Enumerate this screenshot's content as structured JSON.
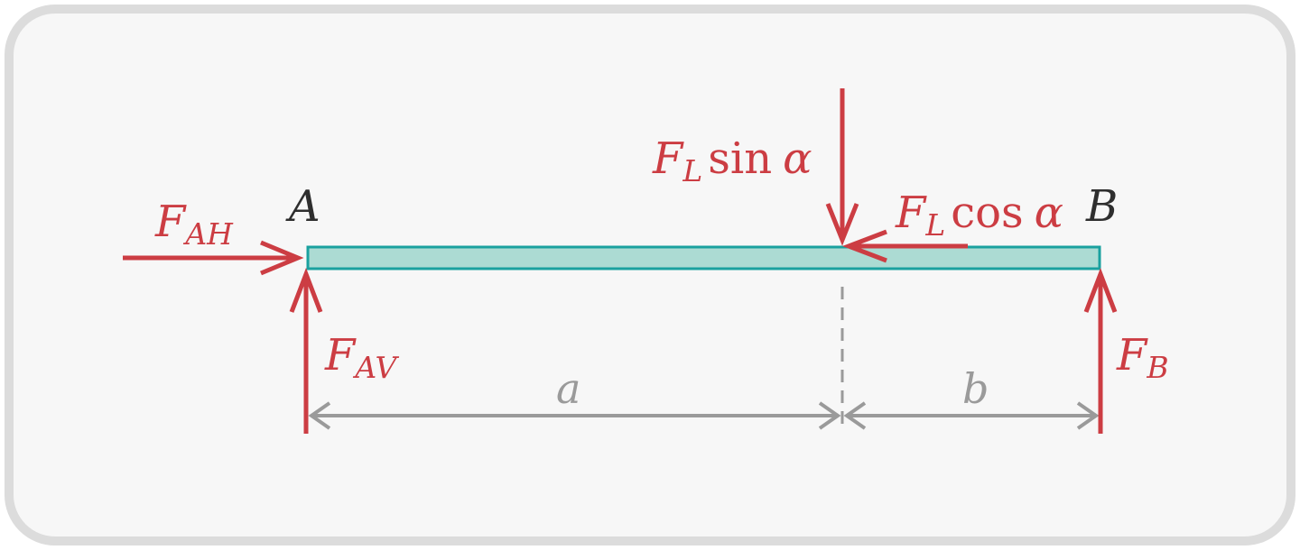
{
  "colors": {
    "force": "#cc3d43",
    "beam_fill": "#acdbd3",
    "beam_stroke": "#1aa19f",
    "dimension": "#9a9a9a",
    "point_label": "#2e2e2e",
    "background": "#f7f7f7",
    "border": "#dcdcdc"
  },
  "points": {
    "a_label": "A",
    "b_label": "B"
  },
  "forces": {
    "fah": {
      "main": "F",
      "sub": "AH"
    },
    "fav": {
      "main": "F",
      "sub": "AV"
    },
    "fb": {
      "main": "F",
      "sub": "B"
    },
    "fl_sin": {
      "main": "F",
      "sub": "L",
      "func": "sin",
      "angle": "α"
    },
    "fl_cos": {
      "main": "F",
      "sub": "L",
      "func": "cos",
      "angle": "α"
    }
  },
  "dimensions": {
    "a_label": "a",
    "b_label": "b"
  }
}
